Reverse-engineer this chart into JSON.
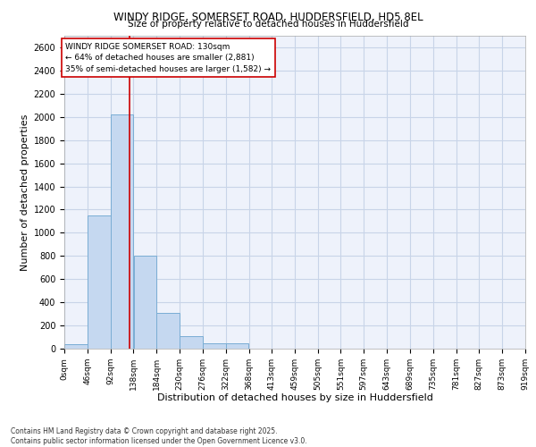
{
  "title_line1": "WINDY RIDGE, SOMERSET ROAD, HUDDERSFIELD, HD5 8EL",
  "title_line2": "Size of property relative to detached houses in Huddersfield",
  "xlabel": "Distribution of detached houses by size in Huddersfield",
  "ylabel": "Number of detached properties",
  "bar_color": "#c5d8f0",
  "bar_edge_color": "#7aadd4",
  "grid_color": "#c8d4e8",
  "plot_bg_color": "#eef2fb",
  "fig_bg_color": "#ffffff",
  "annotation_line1": "WINDY RIDGE SOMERSET ROAD: 130sqm",
  "annotation_line2": "← 64% of detached houses are smaller (2,881)",
  "annotation_line3": "35% of semi-detached houses are larger (1,582) →",
  "vline_x": 130,
  "vline_color": "#cc0000",
  "bin_edges": [
    0,
    46,
    92,
    138,
    184,
    230,
    276,
    322,
    368,
    413,
    459,
    505,
    551,
    597,
    643,
    689,
    735,
    781,
    827,
    873,
    919
  ],
  "bar_heights": [
    40,
    1150,
    2020,
    800,
    305,
    110,
    50,
    50,
    0,
    0,
    0,
    0,
    0,
    0,
    0,
    0,
    0,
    0,
    0,
    0
  ],
  "ylim": [
    0,
    2700
  ],
  "yticks": [
    0,
    200,
    400,
    600,
    800,
    1000,
    1200,
    1400,
    1600,
    1800,
    2000,
    2200,
    2400,
    2600
  ],
  "footer_text": "Contains HM Land Registry data © Crown copyright and database right 2025.\nContains public sector information licensed under the Open Government Licence v3.0.",
  "tick_labels": [
    "0sqm",
    "46sqm",
    "92sqm",
    "138sqm",
    "184sqm",
    "230sqm",
    "276sqm",
    "322sqm",
    "368sqm",
    "413sqm",
    "459sqm",
    "505sqm",
    "551sqm",
    "597sqm",
    "643sqm",
    "689sqm",
    "735sqm",
    "781sqm",
    "827sqm",
    "873sqm",
    "919sqm"
  ]
}
